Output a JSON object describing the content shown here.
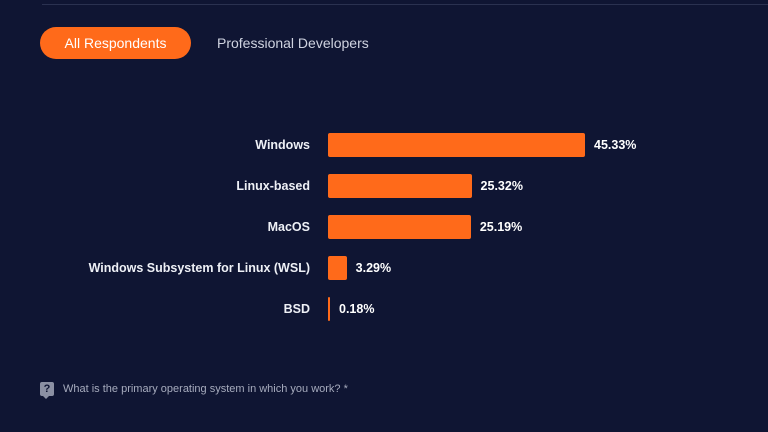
{
  "tabs": [
    {
      "label": "All Respondents",
      "active": true
    },
    {
      "label": "Professional Developers",
      "active": false
    }
  ],
  "colors": {
    "background": "#0f1533",
    "accent": "#ff6a1a",
    "text": "#ffffff",
    "muted_text": "#a6abbd"
  },
  "chart_data": {
    "type": "bar",
    "orientation": "horizontal",
    "categories": [
      "Windows",
      "Linux-based",
      "MacOS",
      "Windows Subsystem for Linux (WSL)",
      "BSD"
    ],
    "values": [
      45.33,
      25.32,
      25.19,
      3.29,
      0.18
    ],
    "value_labels": [
      "45.33%",
      "25.32%",
      "25.19%",
      "3.29%",
      "0.18%"
    ],
    "unit": "%",
    "xlim": [
      0,
      45.33
    ]
  },
  "footer": {
    "icon": "help-icon",
    "question": "What is the primary operating system in which you work? *"
  }
}
